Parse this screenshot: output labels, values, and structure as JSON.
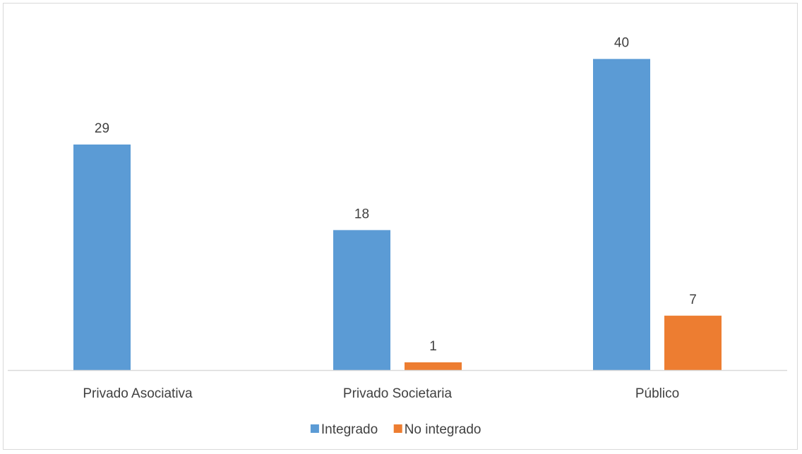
{
  "chart_data": {
    "type": "bar",
    "categories": [
      "Privado Asociativa",
      "Privado Societaria",
      "Público"
    ],
    "series": [
      {
        "name": "Integrado",
        "values": [
          29,
          18,
          40
        ],
        "color": "#5b9bd5"
      },
      {
        "name": "No integrado",
        "values": [
          null,
          1,
          7
        ],
        "color": "#ed7d31"
      }
    ],
    "data_labels": true,
    "ylim": [
      0,
      43.5
    ],
    "y_axis_visible": false,
    "grid": false,
    "legend_position": "bottom"
  }
}
